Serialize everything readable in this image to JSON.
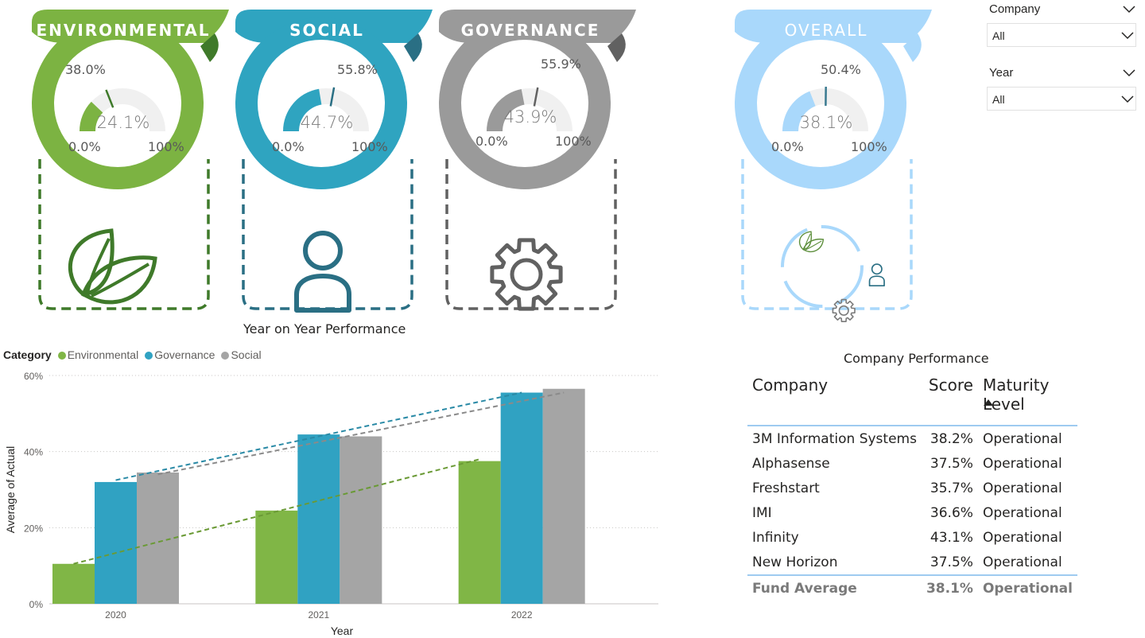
{
  "cards": {
    "environmental": {
      "title": "ENVIRONMENTAL",
      "value": "24.1%",
      "target": "38.0%",
      "min": "0.0%",
      "max": "100%",
      "fill": 0.241,
      "target_frac": 0.38,
      "color": "#7cb342",
      "dark": "#3f7a2a",
      "icon": "leaf-icon"
    },
    "social": {
      "title": "SOCIAL",
      "value": "44.7%",
      "target": "55.8%",
      "min": "0.0%",
      "max": "100%",
      "fill": 0.447,
      "target_frac": 0.558,
      "color": "#2fa4c0",
      "dark": "#2a6f84",
      "icon": "person-icon"
    },
    "governance": {
      "title": "GOVERNANCE",
      "value": "43.9%",
      "target": "55.9%",
      "min": "0.0%",
      "max": "100%",
      "fill": 0.439,
      "target_frac": 0.559,
      "color": "#9a9a9a",
      "dark": "#616161",
      "icon": "gear-icon"
    },
    "overall": {
      "title": "OVERALL",
      "value": "38.1%",
      "target": "50.4%",
      "min": "0.0%",
      "max": "100%",
      "fill": 0.381,
      "target_frac": 0.504,
      "color": "#a9d8fb",
      "dark": "#a9d8fb",
      "icon": "esg-cycle-icon"
    }
  },
  "filters": {
    "company": {
      "label": "Company",
      "value": "All"
    },
    "year": {
      "label": "Year",
      "value": "All"
    }
  },
  "yoy": {
    "title": "Year on Year Performance",
    "legend_title": "Category",
    "legend": [
      {
        "name": "Environmental",
        "color": "#80b646"
      },
      {
        "name": "Governance",
        "color": "#30a2c2"
      },
      {
        "name": "Social",
        "color": "#a5a5a5"
      }
    ]
  },
  "chart_data": {
    "type": "bar",
    "categories": [
      "2020",
      "2021",
      "2022"
    ],
    "series": [
      {
        "name": "Environmental",
        "values": [
          10.5,
          24.5,
          37.5
        ],
        "color": "#80b646"
      },
      {
        "name": "Governance",
        "values": [
          32.0,
          44.5,
          55.5
        ],
        "color": "#30a2c2"
      },
      {
        "name": "Social",
        "values": [
          34.5,
          44.0,
          56.5
        ],
        "color": "#a5a5a5"
      }
    ],
    "trendlines": [
      {
        "series": "Environmental",
        "start": 10.5,
        "end": 38.0
      },
      {
        "series": "Governance",
        "start": 32.5,
        "end": 55.5
      },
      {
        "series": "Social",
        "start": 34.0,
        "end": 55.5
      }
    ],
    "xlabel": "Year",
    "ylabel": "Average of Actual",
    "ylim": [
      0,
      60
    ],
    "yticks": [
      "0%",
      "20%",
      "40%",
      "60%"
    ],
    "grid": true
  },
  "company_performance": {
    "title": "Company Performance",
    "headers": [
      "Company",
      "Score",
      "Maturity Level"
    ],
    "rows": [
      [
        "3M Information Systems",
        "38.2%",
        "Operational"
      ],
      [
        "Alphasense",
        "37.5%",
        "Operational"
      ],
      [
        "Freshstart",
        "35.7%",
        "Operational"
      ],
      [
        "IMI",
        "36.6%",
        "Operational"
      ],
      [
        "Infinity",
        "43.1%",
        "Operational"
      ],
      [
        "New Horizon",
        "37.5%",
        "Operational"
      ]
    ],
    "total": [
      "Fund Average",
      "38.1%",
      "Operational"
    ]
  }
}
